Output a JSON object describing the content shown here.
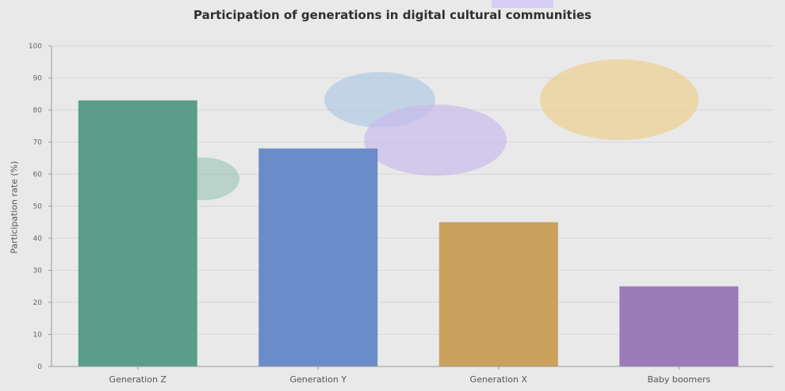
{
  "chart_data": {
    "type": "bar",
    "title": "Participation of generations in digital cultural communities",
    "xlabel": "",
    "ylabel": "Participation rate (%)",
    "ylim": [
      0,
      100
    ],
    "yticks": [
      0,
      10,
      20,
      30,
      40,
      50,
      60,
      70,
      80,
      90,
      100
    ],
    "grid": true,
    "categories": [
      "Generation Z",
      "Generation Y",
      "Generation X",
      "Baby boomers"
    ],
    "values": [
      83,
      68,
      45,
      25
    ],
    "colors": [
      "#5a9e8a",
      "#6a8cc8",
      "#c9a05c",
      "#9b7cb8"
    ]
  }
}
